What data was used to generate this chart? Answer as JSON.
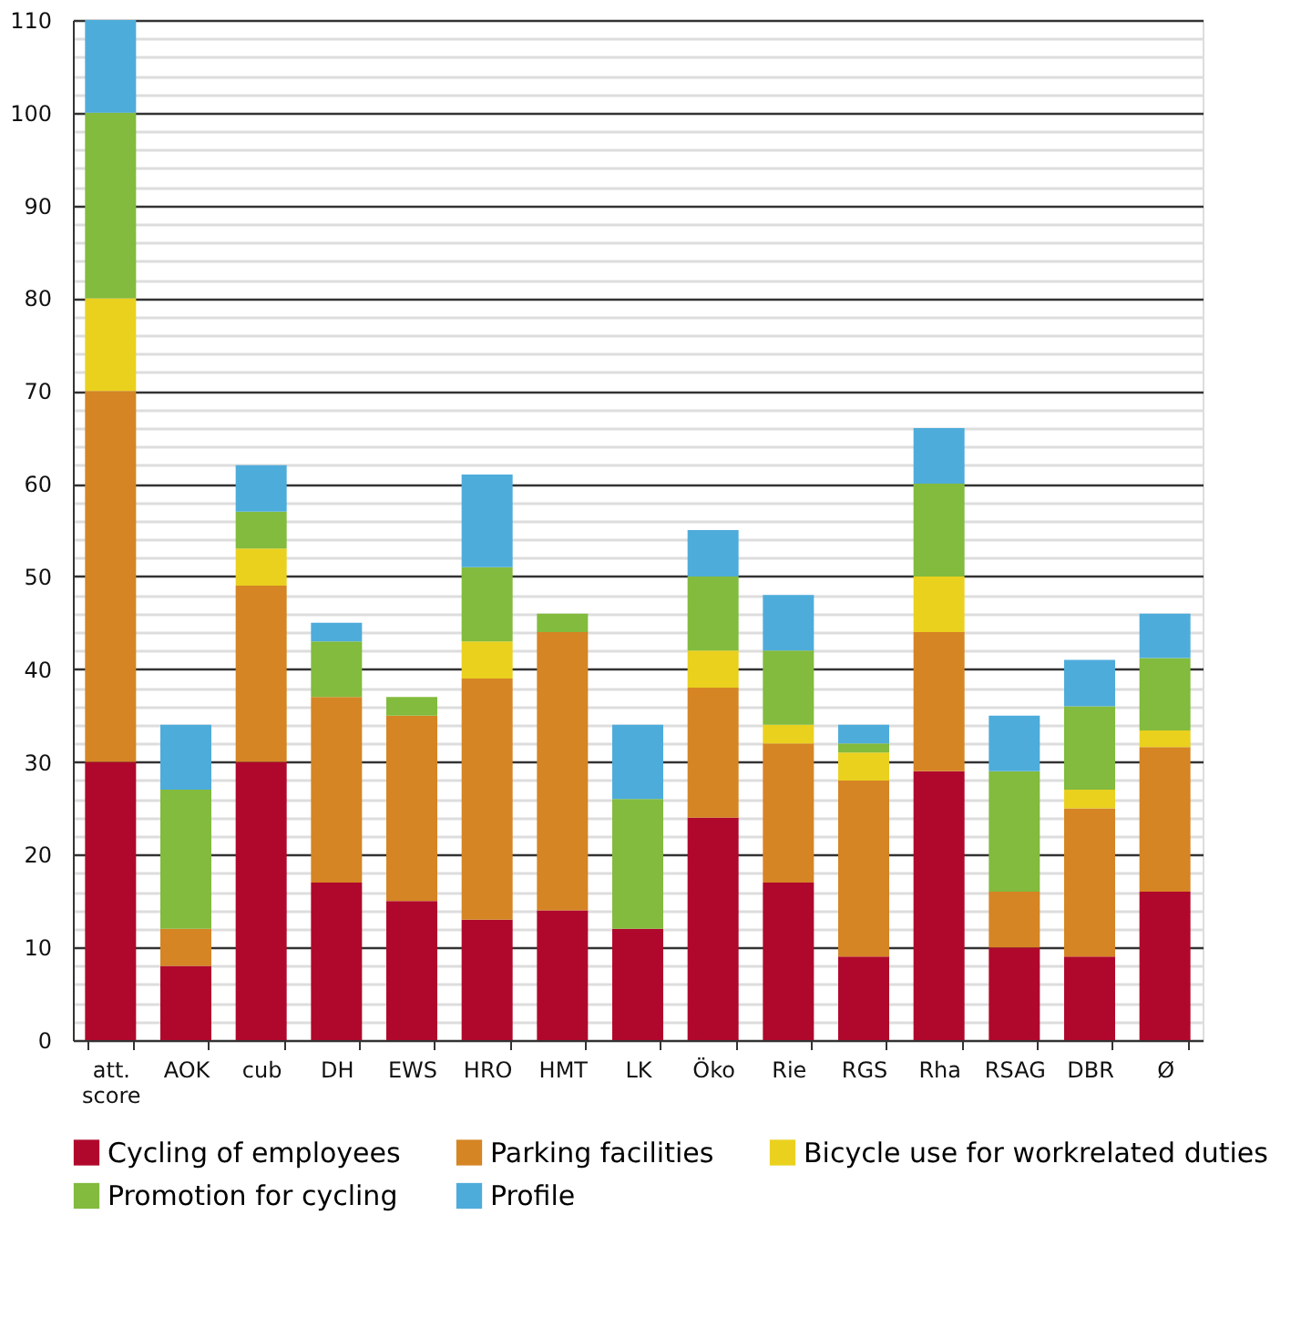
{
  "chart_data": {
    "type": "bar",
    "stacked": true,
    "categories": [
      "att. score",
      "AOK",
      "cub",
      "DH",
      "EWS",
      "HRO",
      "HMT",
      "LK",
      "Öko",
      "Rie",
      "RGS",
      "Rha",
      "RSAG",
      "DBR",
      "Ø"
    ],
    "series": [
      {
        "name": "Cycling of employees",
        "color": "#b0082c",
        "values": [
          30,
          8,
          30,
          17,
          15,
          13,
          14,
          12,
          24,
          17,
          9,
          29,
          10,
          9,
          16
        ]
      },
      {
        "name": "Parking facilities",
        "color": "#d58524",
        "values": [
          40,
          4,
          19,
          20,
          20,
          26,
          30,
          null,
          14,
          15,
          19,
          15,
          6,
          16,
          15.6
        ]
      },
      {
        "name": "Bicycle use for workrelated duties",
        "color": "#ead11e",
        "values": [
          10,
          null,
          4,
          null,
          null,
          4,
          null,
          null,
          4,
          2,
          3,
          6,
          null,
          2,
          1.8
        ]
      },
      {
        "name": "Promotion for cycling",
        "color": "#82bb3d",
        "values": [
          20,
          15,
          4,
          6,
          2,
          8,
          2,
          14,
          8,
          8,
          1,
          10,
          13,
          9,
          7.8
        ]
      },
      {
        "name": "Profile",
        "color": "#4eacdb",
        "values": [
          10,
          7,
          5,
          2,
          null,
          10,
          null,
          8,
          5,
          6,
          2,
          6,
          6,
          5,
          4.8
        ]
      }
    ],
    "ylim": [
      0,
      110
    ],
    "yticks": [
      0,
      {
        "value": 2,
        "label": null
      },
      {
        "value": 4,
        "label": null
      },
      {
        "value": 6,
        "label": null
      },
      {
        "value": 8,
        "label": null
      },
      10,
      {
        "value": 12,
        "label": null
      },
      {
        "value": 14,
        "label": null
      },
      {
        "value": 16,
        "label": null
      },
      {
        "value": 18,
        "label": null
      },
      20,
      {
        "value": 22,
        "label": null
      },
      {
        "value": 24,
        "label": null
      },
      {
        "value": 26,
        "label": null
      },
      {
        "value": 28,
        "label": null
      },
      30,
      {
        "value": 32,
        "label": null
      },
      {
        "value": 34,
        "label": null
      },
      {
        "value": 36,
        "label": null
      },
      {
        "value": 38,
        "label": null
      },
      40,
      {
        "value": 42,
        "label": null
      },
      {
        "value": 44,
        "label": null
      },
      {
        "value": 46,
        "label": null
      },
      {
        "value": 48,
        "label": null
      },
      50,
      {
        "value": 52,
        "label": null
      },
      {
        "value": 54,
        "label": null
      },
      {
        "value": 56,
        "label": null
      },
      {
        "value": 58,
        "label": null
      },
      60,
      {
        "value": 62,
        "label": null
      },
      {
        "value": 64,
        "label": null
      },
      {
        "value": 66,
        "label": null
      },
      {
        "value": 68,
        "label": null
      },
      70,
      {
        "value": 72,
        "label": null
      },
      {
        "value": 74,
        "label": null
      },
      {
        "value": 76,
        "label": null
      },
      {
        "value": 78,
        "label": null
      },
      80,
      {
        "value": 82,
        "label": null
      },
      {
        "value": 84,
        "label": null
      },
      {
        "value": 86,
        "label": null
      },
      {
        "value": 88,
        "label": null
      },
      90,
      {
        "value": 92,
        "label": null
      },
      {
        "value": 94,
        "label": null
      },
      {
        "value": 96,
        "label": null
      },
      {
        "value": 98,
        "label": null
      },
      100,
      {
        "value": 102,
        "label": null
      },
      {
        "value": 104,
        "label": null
      },
      {
        "value": 106,
        "label": null
      },
      {
        "value": 108,
        "label": null
      },
      110
    ],
    "grid": "y",
    "legend": "bottom"
  }
}
